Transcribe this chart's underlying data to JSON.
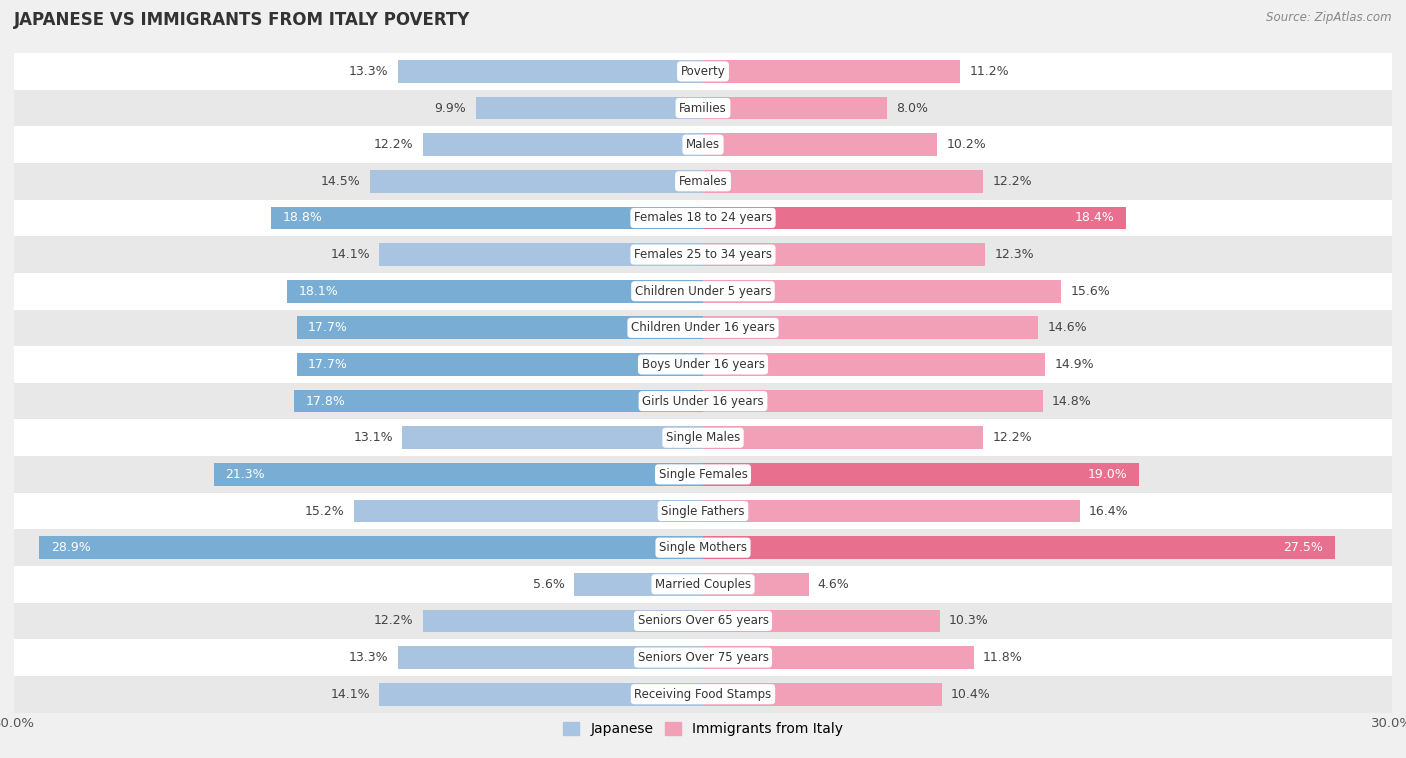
{
  "title": "JAPANESE VS IMMIGRANTS FROM ITALY POVERTY",
  "source": "Source: ZipAtlas.com",
  "categories": [
    "Poverty",
    "Families",
    "Males",
    "Females",
    "Females 18 to 24 years",
    "Females 25 to 34 years",
    "Children Under 5 years",
    "Children Under 16 years",
    "Boys Under 16 years",
    "Girls Under 16 years",
    "Single Males",
    "Single Females",
    "Single Fathers",
    "Single Mothers",
    "Married Couples",
    "Seniors Over 65 years",
    "Seniors Over 75 years",
    "Receiving Food Stamps"
  ],
  "japanese": [
    13.3,
    9.9,
    12.2,
    14.5,
    18.8,
    14.1,
    18.1,
    17.7,
    17.7,
    17.8,
    13.1,
    21.3,
    15.2,
    28.9,
    5.6,
    12.2,
    13.3,
    14.1
  ],
  "italy": [
    11.2,
    8.0,
    10.2,
    12.2,
    18.4,
    12.3,
    15.6,
    14.6,
    14.9,
    14.8,
    12.2,
    19.0,
    16.4,
    27.5,
    4.6,
    10.3,
    11.8,
    10.4
  ],
  "japanese_color_normal": "#a8c4e0",
  "japanese_color_highlight": "#7aadd4",
  "italy_color_normal": "#f2a0b8",
  "italy_color_highlight": "#e8708e",
  "highlight_threshold": 17.5,
  "xlim": 30.0,
  "legend_japanese": "Japanese",
  "legend_italy": "Immigrants from Italy",
  "background_color": "#f0f0f0",
  "row_color_light": "#ffffff",
  "row_color_dark": "#e8e8e8",
  "bar_height": 0.62
}
